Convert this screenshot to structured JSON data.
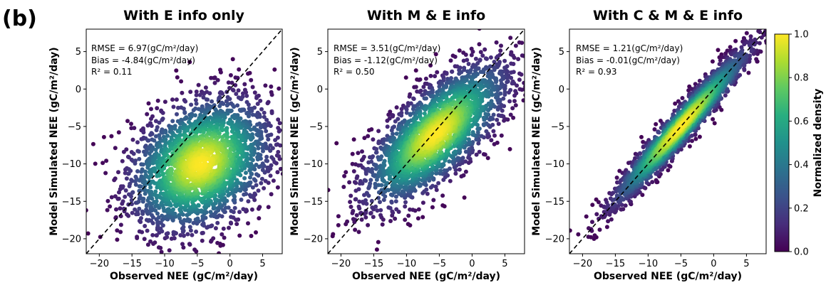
{
  "figure": {
    "panel_label": "(b)",
    "colorbar": {
      "label": "Normalized density",
      "ticks": [
        "0.0",
        "0.2",
        "0.4",
        "0.6",
        "0.8",
        "1.0"
      ],
      "colormap": [
        "#440154",
        "#472d7b",
        "#3b528b",
        "#2c728e",
        "#21918c",
        "#28ae80",
        "#5ec962",
        "#addc30",
        "#fde725"
      ]
    }
  },
  "chart_data": [
    {
      "type": "scatter",
      "title": "With E info only",
      "xlabel": "Observed NEE (gC/m²/day)",
      "ylabel": "Model Simulated NEE (gC/m²/day)",
      "xlim": [
        -22,
        8
      ],
      "ylim": [
        -22,
        8
      ],
      "xticks": [
        -20,
        -15,
        -10,
        -5,
        0,
        5
      ],
      "yticks": [
        -20,
        -15,
        -10,
        -5,
        0,
        5
      ],
      "reference_line": "1:1 dashed",
      "stats": {
        "rmse": "RMSE = 6.97(gC/m²/day)",
        "bias": "Bias = -4.84(gC/m²/day)",
        "r2": "R² = 0.11"
      },
      "density_center": [
        -4.5,
        -10
      ],
      "spread": [
        5.5,
        4.5
      ],
      "correlation": 0.3
    },
    {
      "type": "scatter",
      "title": "With M & E info",
      "xlabel": "Observed NEE (gC/m²/day)",
      "ylabel": "Model Simulated NEE (gC/m²/day)",
      "xlim": [
        -22,
        8
      ],
      "ylim": [
        -22,
        8
      ],
      "xticks": [
        -20,
        -15,
        -10,
        -5,
        0,
        5
      ],
      "yticks": [
        -20,
        -15,
        -10,
        -5,
        0,
        5
      ],
      "reference_line": "1:1 dashed",
      "stats": {
        "rmse": "RMSE = 3.51(gC/m²/day)",
        "bias": "Bias = -1.12(gC/m²/day)",
        "r2": "R² = 0.50"
      },
      "density_center": [
        -5.5,
        -6
      ],
      "spread": [
        5.5,
        4.8
      ],
      "correlation": 0.72
    },
    {
      "type": "scatter",
      "title": "With C & M & E info",
      "xlabel": "Observed NEE (gC/m²/day)",
      "ylabel": "Model Simulated NEE (gC/m²/day)",
      "xlim": [
        -22,
        8
      ],
      "ylim": [
        -22,
        8
      ],
      "xticks": [
        -20,
        -15,
        -10,
        -5,
        0,
        5
      ],
      "yticks": [
        -20,
        -15,
        -10,
        -5,
        0,
        5
      ],
      "reference_line": "1:1 dashed",
      "stats": {
        "rmse": "RMSE = 1.21(gC/m²/day)",
        "bias": "Bias = -0.01(gC/m²/day)",
        "r2": "R² = 0.93"
      },
      "density_center": [
        -5,
        -5
      ],
      "spread": [
        5.2,
        5.2
      ],
      "correlation": 0.965
    }
  ]
}
